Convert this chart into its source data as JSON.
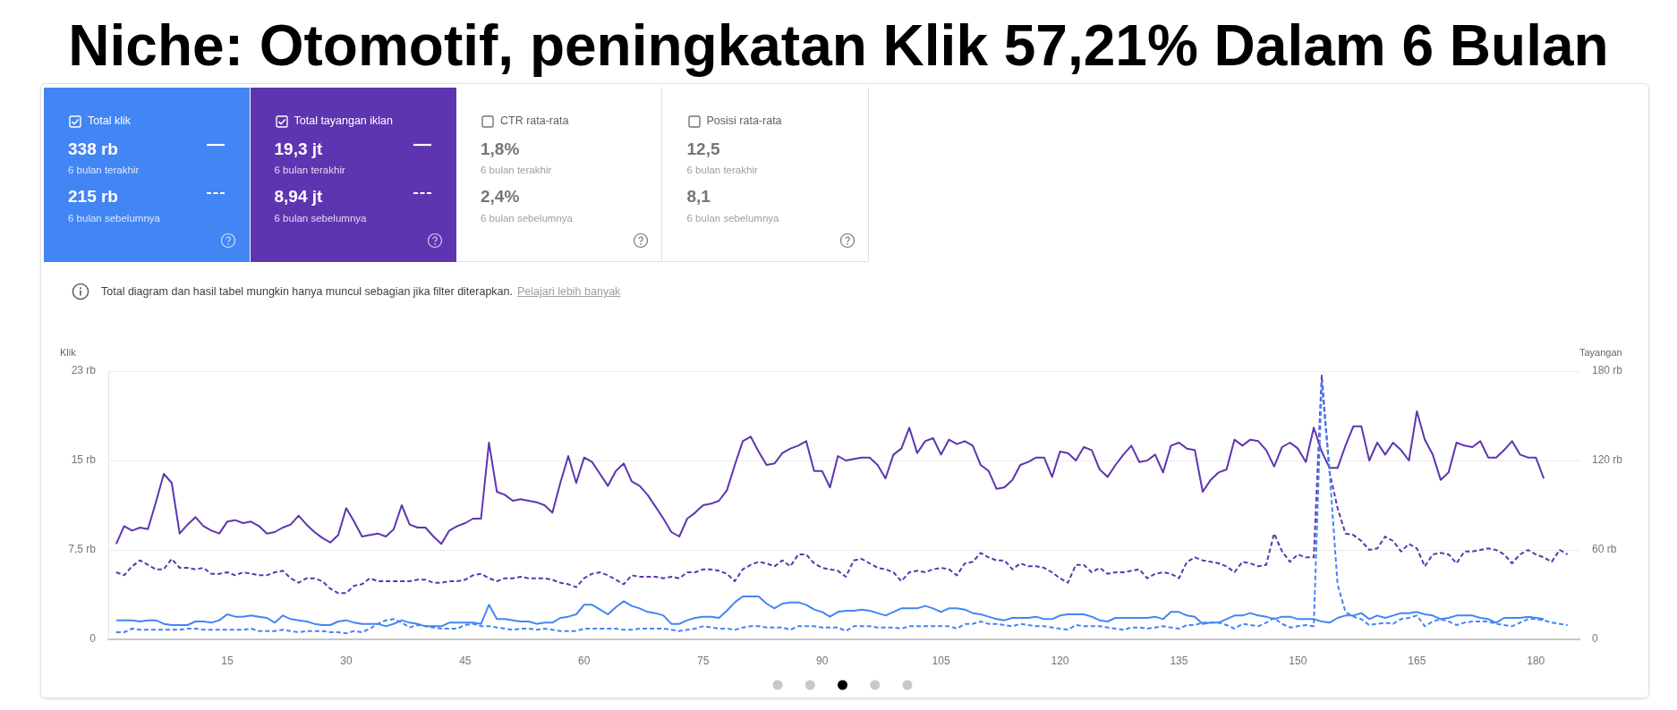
{
  "chart_data": [
    {
      "type": "other",
      "title": "Niche: Otomotif, peningkatan Klik 57,21% Dalam 6 Bulan",
      "annotations": [
        "Total klik",
        "338 rb",
        "6 bulan terakhir",
        "215 rb",
        "6 bulan sebelumnya",
        "Total tayangan iklan",
        "19,3 jt",
        "6 bulan terakhir",
        "8,94 jt",
        "6 bulan sebelumnya",
        "CTR rata-rata",
        "1,8%",
        "6 bulan terakhir",
        "2,4%",
        "6 bulan sebelumnya",
        "Posisi rata-rata",
        "12,5",
        "6 bulan terakhir",
        "8,1",
        "6 bulan sebelumnya"
      ],
      "colors": [
        "#4285f4",
        "#5e35b1",
        null,
        null
      ]
    },
    {
      "type": "line",
      "annotations": [
        "Total diagram dan hasil tabel mungkin hanya muncul sebagian jika filter diterapkan.",
        "Pelajari lebih banyak"
      ],
      "ylabel": "Klik",
      "y2label": "Tayangan",
      "x": [
        1,
        2,
        3,
        4,
        5,
        6,
        7,
        8,
        9,
        10,
        11,
        12,
        13,
        14,
        15,
        16,
        17,
        18,
        19,
        20,
        21,
        22,
        23,
        24,
        25,
        26,
        27,
        28,
        29,
        30,
        31,
        32,
        33,
        34,
        35,
        36,
        37,
        38,
        39,
        40,
        41,
        42,
        43,
        44,
        45,
        46,
        47,
        48,
        49,
        50,
        51,
        52,
        53,
        54,
        55,
        56,
        57,
        58,
        59,
        60,
        61,
        62,
        63,
        64,
        65,
        66,
        67,
        68,
        69,
        70,
        71,
        72,
        73,
        74,
        75,
        76,
        77,
        78,
        79,
        80,
        81,
        82,
        83,
        84,
        85,
        86,
        87,
        88,
        89,
        90,
        91,
        92,
        93,
        94,
        95,
        96,
        97,
        98,
        99,
        100,
        101,
        102,
        103,
        104,
        105,
        106,
        107,
        108,
        109,
        110,
        111,
        112,
        113,
        114,
        115,
        116,
        117,
        118,
        119,
        120,
        121,
        122,
        123,
        124,
        125,
        126,
        127,
        128,
        129,
        130,
        131,
        132,
        133,
        134,
        135,
        136,
        137,
        138,
        139,
        140,
        141,
        142,
        143,
        144,
        145,
        146,
        147,
        148,
        149,
        150,
        151,
        152,
        153,
        154,
        155,
        156,
        157,
        158,
        159,
        160,
        161,
        162,
        163,
        164,
        165,
        166,
        167,
        168,
        169,
        170,
        171,
        172,
        173,
        174,
        175,
        176,
        177,
        178,
        179,
        180,
        181,
        182,
        183,
        184
      ],
      "xlim": [
        0,
        185.5
      ],
      "xticks": [
        15,
        30,
        45,
        60,
        75,
        90,
        105,
        120,
        135,
        150,
        165,
        180
      ],
      "ylim": [
        0,
        22.5
      ],
      "yticks": [
        0,
        {
          "value": 7.5,
          "label": "7,5 rb"
        },
        {
          "value": 15,
          "label": "15 rb"
        },
        {
          "value": 22.5,
          "label": "23 rb"
        }
      ],
      "y2lim": [
        0,
        180
      ],
      "y2ticks": [
        0,
        {
          "value": 60,
          "label": "60 rb"
        },
        {
          "value": 120,
          "label": "120 rb"
        },
        {
          "value": 180,
          "label": "180 rb"
        }
      ],
      "grid": "y",
      "marker": "none",
      "series": [
        {
          "color": "#4285f4",
          "line_style": "solid",
          "values": [
            1.6,
            1.6,
            1.6,
            1.5,
            1.6,
            1.6,
            1.3,
            1.2,
            1.2,
            1.2,
            1.5,
            1.5,
            1.4,
            1.6,
            2.1,
            1.9,
            1.9,
            2.0,
            1.9,
            1.8,
            1.4,
            2.0,
            1.7,
            1.6,
            1.5,
            1.3,
            1.2,
            1.2,
            1.5,
            1.6,
            1.4,
            1.3,
            1.3,
            1.3,
            1.1,
            1.3,
            1.6,
            1.4,
            1.3,
            1.1,
            1.1,
            1.1,
            1.4,
            1.4,
            1.4,
            1.4,
            1.3,
            2.9,
            1.7,
            1.7,
            1.6,
            1.5,
            1.5,
            1.3,
            1.4,
            1.4,
            1.8,
            1.9,
            2.1,
            2.9,
            2.9,
            2.5,
            2.1,
            2.7,
            3.2,
            2.8,
            2.6,
            2.3,
            2.2,
            2.0,
            1.3,
            1.3,
            1.6,
            1.8,
            1.9,
            1.9,
            1.8,
            2.4,
            3.1,
            3.6,
            3.6,
            3.6,
            3.0,
            2.6,
            3.0,
            3.1,
            3.1,
            2.9,
            2.5,
            2.3,
            1.9,
            2.3,
            2.4,
            2.4,
            2.5,
            2.4,
            2.2,
            2.0,
            2.3,
            2.6,
            2.6,
            2.6,
            2.8,
            2.6,
            2.3,
            2.6,
            2.6,
            2.5,
            2.2,
            2.1,
            1.9,
            1.7,
            1.6,
            1.8,
            1.8,
            1.8,
            1.9,
            1.7,
            1.7,
            2.0,
            2.1,
            2.1,
            2.1,
            1.9,
            1.6,
            1.5,
            1.8,
            1.8,
            1.8,
            1.8,
            1.8,
            1.9,
            1.7,
            2.3,
            2.3,
            2.0,
            1.9,
            1.3,
            1.4,
            1.4,
            1.7,
            2.0,
            2.0,
            2.2,
            2.0,
            1.9,
            1.7,
            1.9,
            1.9,
            1.7,
            1.7,
            1.7,
            1.5,
            1.4,
            1.8,
            2.0,
            2.0,
            2.2,
            1.7,
            2.0,
            1.8,
            2.0,
            2.2,
            2.2,
            2.3,
            2.1,
            2.0,
            1.7,
            1.8,
            2.0,
            2.0,
            2.0,
            1.8,
            1.7,
            1.4,
            1.8,
            1.8,
            1.8,
            1.9,
            1.8,
            1.7,
            null,
            null,
            null
          ]
        },
        {
          "color": "#4285f4",
          "line_style": "dashed",
          "values": [
            0.6,
            0.6,
            0.9,
            0.8,
            0.8,
            0.8,
            0.8,
            0.8,
            0.8,
            0.9,
            0.9,
            0.8,
            0.8,
            0.8,
            0.8,
            0.8,
            0.8,
            0.9,
            0.7,
            0.7,
            0.7,
            0.8,
            0.7,
            0.6,
            0.7,
            0.7,
            0.7,
            0.6,
            0.6,
            0.5,
            0.7,
            0.6,
            0.9,
            1.3,
            1.6,
            1.7,
            1.4,
            1.0,
            1.2,
            1.1,
            1.0,
            0.9,
            0.9,
            0.9,
            1.2,
            1.3,
            1.1,
            1.1,
            1.0,
            0.9,
            0.8,
            0.9,
            0.9,
            0.8,
            0.9,
            0.8,
            0.7,
            0.7,
            0.7,
            0.9,
            0.9,
            0.9,
            0.9,
            0.9,
            0.8,
            0.8,
            0.9,
            0.9,
            0.9,
            0.9,
            0.8,
            0.7,
            0.8,
            0.9,
            1.1,
            1.0,
            0.9,
            0.9,
            0.8,
            1.0,
            1.1,
            1.1,
            1.0,
            1.0,
            1.0,
            0.8,
            1.1,
            1.1,
            1.1,
            1.0,
            1.0,
            1.0,
            0.7,
            1.1,
            1.1,
            1.1,
            1.0,
            1.0,
            1.0,
            0.9,
            1.1,
            1.1,
            1.1,
            1.1,
            1.1,
            1.1,
            0.9,
            1.3,
            1.3,
            1.5,
            1.3,
            1.3,
            1.2,
            1.1,
            1.3,
            1.2,
            1.1,
            1.1,
            1.0,
            0.9,
            0.8,
            1.2,
            1.1,
            1.1,
            1.1,
            1.0,
            0.9,
            0.8,
            1.0,
            1.0,
            0.9,
            1.0,
            1.1,
            1.0,
            0.9,
            1.2,
            1.2,
            1.4,
            1.4,
            1.4,
            1.2,
            0.9,
            1.3,
            1.2,
            1.1,
            1.4,
            1.8,
            1.3,
            1.0,
            1.1,
            1.2,
            1.1,
            21.5,
            14,
            4.6,
            2.3,
            1.9,
            1.7,
            1.2,
            1.3,
            1.4,
            1.3,
            1.7,
            1.8,
            2.0,
            1.1,
            1.5,
            1.7,
            1.5,
            1.2,
            1.4,
            1.5,
            1.5,
            1.5,
            1.3,
            1.2,
            1.1,
            1.4,
            1.7,
            1.7,
            1.6,
            1.4,
            1.3,
            1.2
          ]
        },
        {
          "color": "#5e35b1",
          "line_style": "solid",
          "axis": "y2",
          "values": [
            64,
            76,
            73,
            75,
            74,
            92,
            111,
            105,
            71,
            77,
            82,
            76,
            73,
            71,
            79,
            80,
            78,
            79,
            76,
            71,
            72,
            75,
            77,
            83,
            77,
            72,
            68,
            65,
            70,
            88,
            79,
            69,
            70,
            71,
            69,
            74,
            90,
            77,
            75,
            75,
            69,
            64,
            73,
            76,
            78,
            81,
            81,
            132,
            99,
            97,
            93,
            94,
            93,
            92,
            90,
            85,
            105,
            123,
            105,
            122,
            119,
            111,
            103,
            113,
            118,
            106,
            103,
            97,
            89,
            81,
            72,
            69,
            81,
            85,
            90,
            91,
            93,
            100,
            117,
            133,
            136,
            126,
            117,
            118,
            125,
            128,
            130,
            133,
            113,
            113,
            102,
            123,
            120,
            121,
            122,
            122,
            117,
            108,
            124,
            128,
            142,
            125,
            133,
            135,
            124,
            134,
            131,
            133,
            130,
            117,
            113,
            101,
            102,
            107,
            117,
            119,
            122,
            122,
            109,
            126,
            125,
            120,
            129,
            127,
            114,
            109,
            117,
            124,
            130,
            119,
            120,
            124,
            112,
            130,
            132,
            128,
            127,
            99,
            107,
            112,
            114,
            134,
            130,
            134,
            133,
            127,
            116,
            129,
            132,
            128,
            119,
            142,
            126,
            115,
            115,
            130,
            143,
            143,
            120,
            132,
            124,
            132,
            127,
            120,
            153,
            134,
            124,
            107,
            112,
            132,
            130,
            129,
            133,
            122,
            122,
            127,
            133,
            124,
            122,
            122,
            108,
            null,
            null,
            null
          ]
        },
        {
          "color": "#5e35b1",
          "line_style": "dashed",
          "axis": "y2",
          "values": [
            45,
            43,
            49,
            53,
            50,
            47,
            47,
            54,
            48,
            48,
            47,
            48,
            44,
            44,
            45,
            43,
            45,
            44,
            43,
            43,
            45,
            46,
            41,
            38,
            41,
            41,
            39,
            34,
            31,
            31,
            36,
            37,
            41,
            39,
            39,
            39,
            39,
            39,
            40,
            40,
            38,
            38,
            39,
            39,
            40,
            43,
            44,
            41,
            39,
            41,
            41,
            42,
            41,
            41,
            41,
            40,
            38,
            37,
            35,
            41,
            44,
            45,
            43,
            40,
            37,
            43,
            42,
            42,
            42,
            41,
            42,
            41,
            45,
            45,
            47,
            47,
            46,
            44,
            39,
            47,
            50,
            52,
            51,
            49,
            53,
            49,
            57,
            57,
            51,
            48,
            47,
            46,
            42,
            53,
            54,
            51,
            48,
            47,
            45,
            39,
            45,
            46,
            45,
            47,
            48,
            47,
            43,
            51,
            52,
            58,
            55,
            53,
            53,
            47,
            51,
            49,
            49,
            48,
            45,
            41,
            38,
            50,
            50,
            45,
            48,
            44,
            45,
            45,
            46,
            47,
            41,
            44,
            45,
            44,
            41,
            52,
            55,
            53,
            52,
            51,
            49,
            45,
            52,
            51,
            49,
            50,
            71,
            59,
            52,
            57,
            55,
            55,
            177,
            112,
            88,
            71,
            70,
            66,
            60,
            61,
            69,
            66,
            59,
            64,
            61,
            49,
            57,
            58,
            57,
            51,
            59,
            59,
            60,
            61,
            60,
            57,
            51,
            57,
            60,
            57,
            55,
            52,
            60,
            57
          ]
        }
      ]
    }
  ]
}
